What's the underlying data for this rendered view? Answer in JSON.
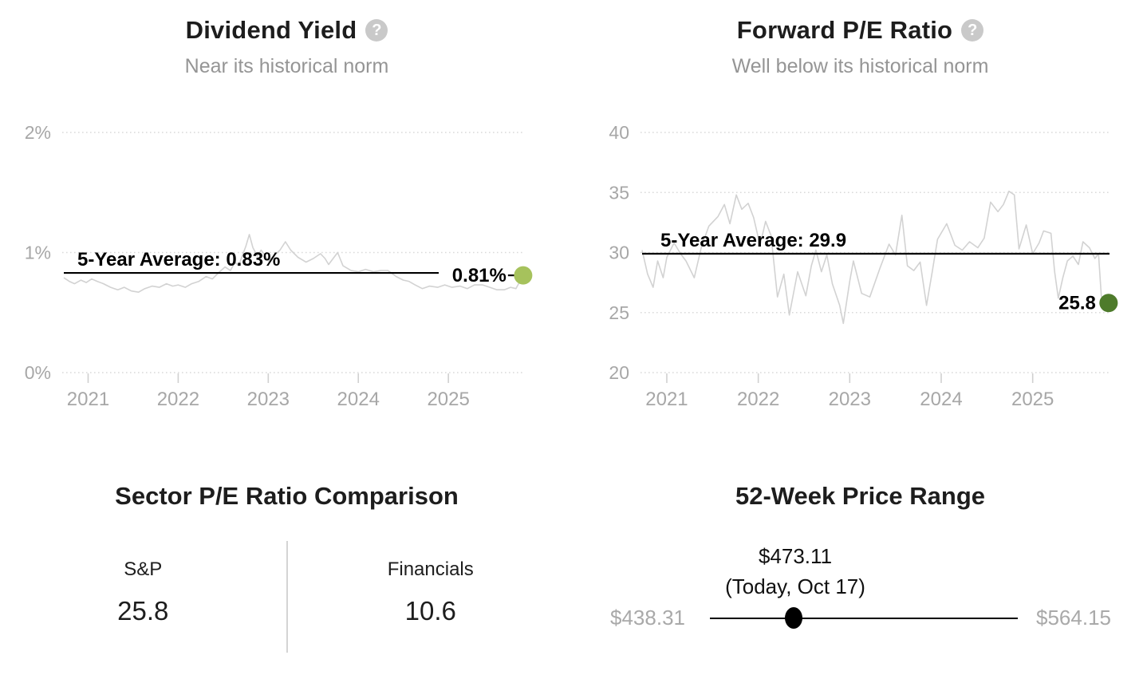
{
  "icons": {
    "help_glyph": "?"
  },
  "colors": {
    "title_text": "#1d1d1d",
    "subtitle_text": "#959595",
    "axis_label": "#a7a7a7",
    "gridline": "#dadada",
    "tick_mark": "#d0d0d0",
    "series_line": "#d2d2d2",
    "average_line": "#000000",
    "dividend_dot": "#a6c25c",
    "pe_dot": "#4e7b2b",
    "help_icon_bg": "#c9c9c9",
    "muted_price": "#a9a9a9",
    "divider": "#d4d4d4",
    "slider": "#000000"
  },
  "panels": {
    "dividend": {
      "title": "Dividend Yield",
      "subtitle": "Near its historical norm"
    },
    "pe": {
      "title": "Forward P/E Ratio",
      "subtitle": "Well below its historical norm"
    },
    "sector": {
      "title": "Sector P/E Ratio Comparison",
      "columns": [
        {
          "label": "S&P",
          "value": "25.8"
        },
        {
          "label": "Financials",
          "value": "10.6"
        }
      ]
    },
    "price_range": {
      "title": "52-Week Price Range",
      "current_price": "$473.11",
      "current_date": "(Today, Oct 17)",
      "low": "$438.31",
      "high": "$564.15"
    }
  },
  "chart_data": [
    {
      "type": "line",
      "name": "dividend-yield",
      "title": "Dividend Yield",
      "subtitle": "Near its historical norm",
      "unit": "%",
      "x_range": [
        2020.73,
        2025.84
      ],
      "y_range": [
        0,
        2
      ],
      "y_ticks": [
        0,
        1,
        2
      ],
      "y_tick_labels": [
        "0%",
        "1%",
        "2%"
      ],
      "x_ticks": [
        2021,
        2022,
        2023,
        2024,
        2025
      ],
      "x_tick_labels": [
        "2021",
        "2022",
        "2023",
        "2024",
        "2025"
      ],
      "grid": "horizontal-dotted",
      "legend": "none",
      "average": 0.83,
      "average_label": "5-Year Average: 0.83%",
      "current": 0.81,
      "current_label": "0.81%",
      "x": [
        2020.73,
        2020.79,
        2020.85,
        2020.92,
        2020.98,
        2021.04,
        2021.1,
        2021.17,
        2021.25,
        2021.33,
        2021.4,
        2021.48,
        2021.56,
        2021.63,
        2021.71,
        2021.79,
        2021.87,
        2021.94,
        2022.0,
        2022.08,
        2022.15,
        2022.23,
        2022.31,
        2022.38,
        2022.46,
        2022.52,
        2022.58,
        2022.63,
        2022.67,
        2022.71,
        2022.75,
        2022.79,
        2022.83,
        2022.88,
        2022.92,
        2022.96,
        2023.0,
        2023.06,
        2023.13,
        2023.19,
        2023.25,
        2023.33,
        2023.42,
        2023.5,
        2023.58,
        2023.63,
        2023.67,
        2023.71,
        2023.77,
        2023.83,
        2023.92,
        2024.0,
        2024.08,
        2024.17,
        2024.25,
        2024.33,
        2024.42,
        2024.5,
        2024.56,
        2024.63,
        2024.71,
        2024.79,
        2024.88,
        2024.96,
        2025.04,
        2025.13,
        2025.21,
        2025.29,
        2025.38,
        2025.46,
        2025.54,
        2025.62,
        2025.69,
        2025.75,
        2025.83
      ],
      "y": [
        0.79,
        0.76,
        0.74,
        0.77,
        0.75,
        0.78,
        0.76,
        0.74,
        0.71,
        0.69,
        0.71,
        0.68,
        0.67,
        0.7,
        0.72,
        0.71,
        0.74,
        0.72,
        0.73,
        0.71,
        0.74,
        0.76,
        0.8,
        0.78,
        0.84,
        0.88,
        0.85,
        0.92,
        0.89,
        0.97,
        1.05,
        1.15,
        1.04,
        0.97,
        1.02,
        0.98,
        0.93,
        0.97,
        1.02,
        1.09,
        1.02,
        0.96,
        0.92,
        0.95,
        0.99,
        0.95,
        0.9,
        0.94,
        1.0,
        0.89,
        0.85,
        0.84,
        0.86,
        0.84,
        0.85,
        0.85,
        0.8,
        0.77,
        0.76,
        0.73,
        0.7,
        0.72,
        0.71,
        0.73,
        0.71,
        0.72,
        0.7,
        0.73,
        0.73,
        0.71,
        0.69,
        0.69,
        0.71,
        0.7,
        0.81
      ]
    },
    {
      "type": "line",
      "name": "forward-pe-ratio",
      "title": "Forward P/E Ratio",
      "subtitle": "Well below its historical norm",
      "unit": "",
      "x_range": [
        2020.73,
        2025.84
      ],
      "y_range": [
        20,
        40
      ],
      "y_ticks": [
        20,
        25,
        30,
        35,
        40
      ],
      "y_tick_labels": [
        "20",
        "25",
        "30",
        "35",
        "40"
      ],
      "x_ticks": [
        2021,
        2022,
        2023,
        2024,
        2025
      ],
      "x_tick_labels": [
        "2021",
        "2022",
        "2023",
        "2024",
        "2025"
      ],
      "grid": "horizontal-dotted",
      "legend": "none",
      "average": 29.9,
      "average_label": "5-Year Average: 29.9",
      "current": 25.8,
      "current_label": "25.8",
      "x": [
        2020.73,
        2020.79,
        2020.85,
        2020.9,
        2020.96,
        2021.0,
        2021.08,
        2021.15,
        2021.21,
        2021.3,
        2021.38,
        2021.46,
        2021.56,
        2021.63,
        2021.69,
        2021.76,
        2021.82,
        2021.89,
        2021.95,
        2022.02,
        2022.08,
        2022.14,
        2022.21,
        2022.28,
        2022.34,
        2022.43,
        2022.52,
        2022.58,
        2022.63,
        2022.69,
        2022.75,
        2022.81,
        2022.89,
        2022.93,
        2023.0,
        2023.04,
        2023.13,
        2023.22,
        2023.33,
        2023.43,
        2023.5,
        2023.57,
        2023.63,
        2023.7,
        2023.77,
        2023.84,
        2023.9,
        2023.96,
        2024.06,
        2024.15,
        2024.23,
        2024.31,
        2024.4,
        2024.47,
        2024.54,
        2024.62,
        2024.68,
        2024.74,
        2024.8,
        2024.85,
        2024.93,
        2025.0,
        2025.07,
        2025.12,
        2025.2,
        2025.24,
        2025.28,
        2025.33,
        2025.38,
        2025.44,
        2025.5,
        2025.55,
        2025.62,
        2025.68,
        2025.72,
        2025.75,
        2025.79,
        2025.83
      ],
      "y": [
        30.2,
        28.2,
        27.1,
        29.3,
        27.9,
        29.6,
        30.8,
        29.9,
        29.3,
        27.9,
        30.5,
        32.2,
        33.0,
        34.0,
        32.4,
        34.8,
        33.6,
        34.1,
        32.9,
        30.6,
        32.6,
        31.4,
        26.3,
        28.2,
        24.8,
        28.4,
        26.4,
        28.9,
        30.2,
        28.4,
        29.8,
        27.4,
        25.6,
        24.1,
        27.6,
        29.3,
        26.6,
        26.3,
        28.7,
        30.7,
        29.8,
        33.1,
        28.9,
        28.5,
        29.2,
        25.6,
        28.3,
        31.1,
        32.4,
        30.6,
        30.2,
        30.9,
        30.4,
        31.2,
        34.2,
        33.4,
        34.0,
        35.1,
        34.8,
        30.3,
        32.3,
        29.9,
        30.8,
        31.8,
        31.6,
        28.4,
        26.2,
        27.9,
        29.3,
        29.7,
        29.0,
        30.9,
        30.4,
        29.5,
        29.9,
        26.4,
        25.7,
        25.8
      ]
    }
  ]
}
